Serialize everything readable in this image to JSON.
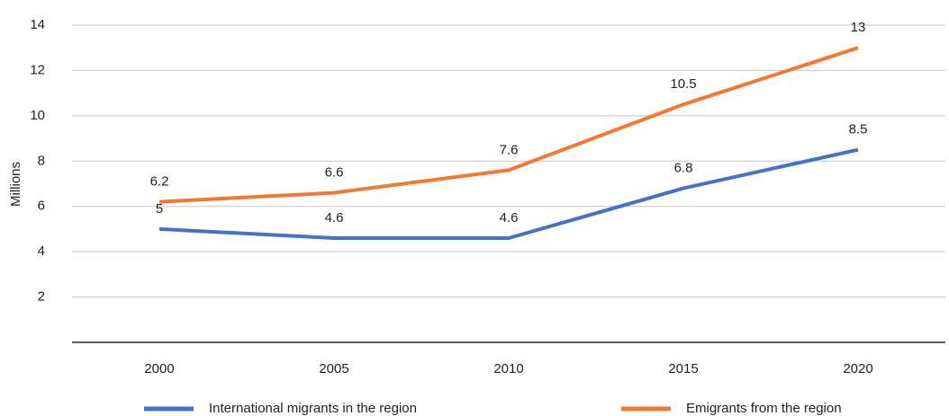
{
  "chart_data": {
    "type": "line",
    "y_label": "Millions",
    "categories": [
      "2000",
      "2005",
      "2010",
      "2015",
      "2020"
    ],
    "series": [
      {
        "name": "International migrants in the region",
        "color": "#4472c4",
        "values": [
          5,
          4.6,
          4.6,
          6.8,
          8.5
        ]
      },
      {
        "name": "Emigrants from the region",
        "color": "#f4782e",
        "values": [
          6.2,
          6.6,
          7.6,
          10.5,
          13
        ]
      }
    ],
    "ylim": [
      0,
      14
    ],
    "yticks": [
      2,
      4,
      6,
      8,
      10,
      12,
      14
    ],
    "grid": true,
    "legend": "bottom"
  }
}
